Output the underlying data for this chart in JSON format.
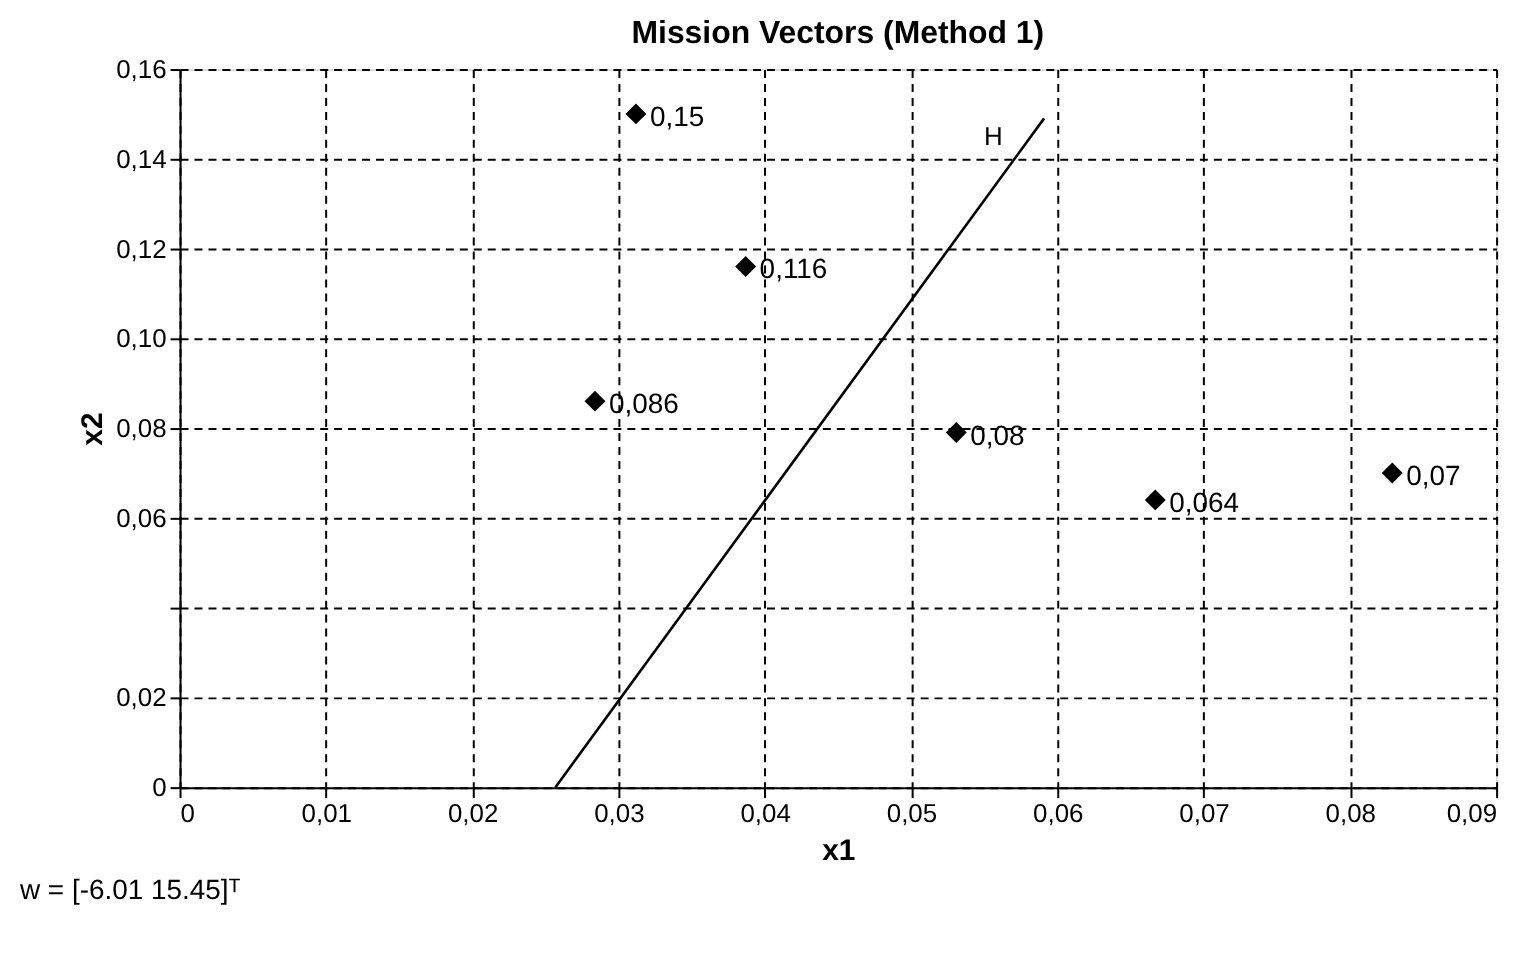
{
  "chart_data": {
    "type": "scatter",
    "title": "Mission Vectors (Method 1)",
    "xlabel": "x1",
    "ylabel": "x2",
    "series": [
      {
        "type": "line",
        "color": "#000000",
        "x": [
          0.0257,
          0.0591
        ],
        "values": [
          0,
          0.149
        ],
        "marker": "none",
        "line_style": "solid"
      },
      {
        "type": "scatter",
        "color": "#000000",
        "marker": "diamond",
        "x": [
          0.0312,
          0.0387,
          0.0284,
          0.0531,
          0.0667,
          0.0829
        ],
        "values": [
          0.15,
          0.116,
          0.086,
          0.079,
          0.064,
          0.07
        ],
        "value_labels": [
          "0,15",
          "0,116",
          "0,086",
          "0,08",
          "0,064",
          "0,07"
        ]
      }
    ],
    "annotations": [
      "H",
      "w = [-6.01    15.45]ᵀ"
    ],
    "xlim": [
      0,
      0.09
    ],
    "ylim": [
      0,
      0.16
    ],
    "xticks": [
      0,
      {
        "value": 0.01,
        "label": "0,01"
      },
      {
        "value": 0.02,
        "label": "0,02"
      },
      {
        "value": 0.03,
        "label": "0,03"
      },
      {
        "value": 0.04,
        "label": "0,04"
      },
      {
        "value": 0.05,
        "label": "0,05"
      },
      {
        "value": 0.06,
        "label": "0,06"
      },
      {
        "value": 0.07,
        "label": "0,07"
      },
      {
        "value": 0.08,
        "label": "0,08"
      },
      {
        "value": 0.09,
        "label": "0,09"
      }
    ],
    "yticks": [
      0,
      {
        "value": 0.02,
        "label": "0,02"
      },
      {
        "value": 0.04,
        "label": null
      },
      {
        "value": 0.06,
        "label": "0,06"
      },
      {
        "value": 0.08,
        "label": "0,08"
      },
      {
        "value": 0.1,
        "label": "0,10"
      },
      {
        "value": 0.12,
        "label": "0,12"
      },
      {
        "value": 0.14,
        "label": "0,14"
      },
      {
        "value": 0.16,
        "label": "0,16"
      }
    ],
    "grid": true
  }
}
